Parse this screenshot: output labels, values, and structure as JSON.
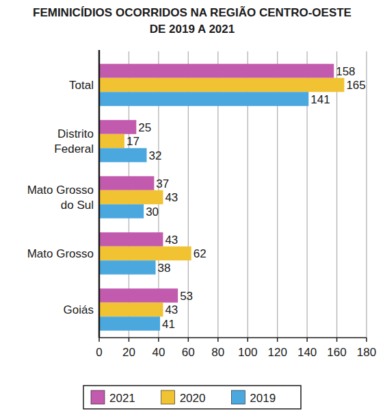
{
  "chart_data": {
    "type": "bar",
    "orientation": "horizontal",
    "title": "FEMINICÍDIOS OCORRIDOS NA REGIÃO CENTRO-OESTE\nDE 2019 A 2021",
    "categories": [
      "Total",
      "Distrito Federal",
      "Mato Grosso do Sul",
      "Mato Grosso",
      "Goiás"
    ],
    "series": [
      {
        "name": "2021",
        "color": "#c25bae",
        "values": [
          158,
          25,
          37,
          43,
          53
        ]
      },
      {
        "name": "2020",
        "color": "#f1c232",
        "values": [
          165,
          17,
          43,
          62,
          43
        ]
      },
      {
        "name": "2019",
        "color": "#4ba8df",
        "values": [
          141,
          32,
          30,
          38,
          41
        ]
      }
    ],
    "xlim": [
      0,
      180
    ],
    "xticks": [
      0,
      20,
      40,
      60,
      80,
      100,
      120,
      140,
      160,
      180
    ],
    "grid": true,
    "data_labels": true,
    "legend": "bottom"
  }
}
